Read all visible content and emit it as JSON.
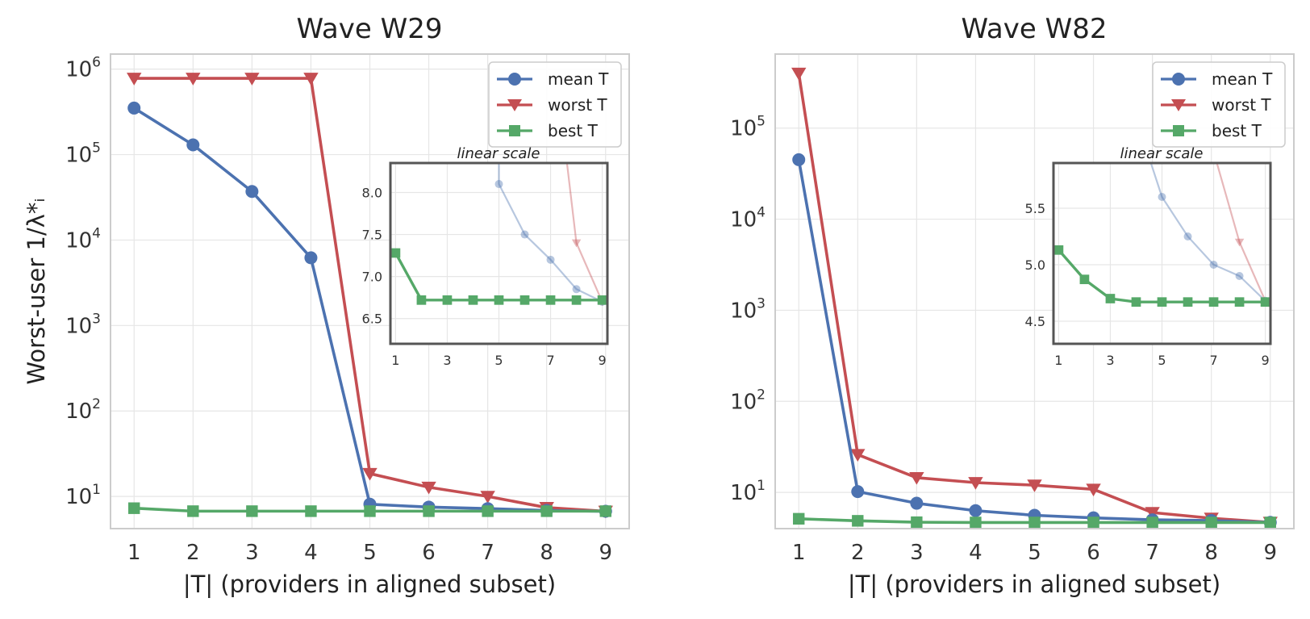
{
  "chart_data": [
    {
      "type": "line",
      "title": "Wave W29",
      "xlabel": "|T| (providers in aligned subset)",
      "ylabel": "Worst-user 1/λ*ᵢ",
      "yscale": "log",
      "ylim": [
        4.2,
        1500000
      ],
      "y_ticks": [
        {
          "value": 10,
          "base": "10",
          "exp": "1"
        },
        {
          "value": 100,
          "base": "10",
          "exp": "2"
        },
        {
          "value": 1000,
          "base": "10",
          "exp": "3"
        },
        {
          "value": 10000,
          "base": "10",
          "exp": "4"
        },
        {
          "value": 100000,
          "base": "10",
          "exp": "5"
        },
        {
          "value": 1000000,
          "base": "10",
          "exp": "6"
        }
      ],
      "x": [
        1,
        2,
        3,
        4,
        5,
        6,
        7,
        8,
        9
      ],
      "xlim": [
        0.6,
        9.4
      ],
      "series": [
        {
          "name": "mean T",
          "color": "#4c72b0",
          "marker": "circle",
          "values": [
            350000,
            130000,
            37000,
            6200,
            8.1,
            7.5,
            7.2,
            6.85,
            6.7
          ]
        },
        {
          "name": "worst T",
          "color": "#c44e52",
          "marker": "triangle",
          "values": [
            780000,
            780000,
            780000,
            780000,
            18.5,
            12.8,
            10.0,
            7.4,
            6.7
          ]
        },
        {
          "name": "best T",
          "color": "#55a868",
          "marker": "square",
          "values": [
            7.28,
            6.72,
            6.72,
            6.72,
            6.72,
            6.72,
            6.72,
            6.72,
            6.72
          ]
        }
      ],
      "legend": {
        "entries": [
          "mean T",
          "worst T",
          "best T"
        ],
        "location": "upper-right"
      },
      "inset": {
        "title": "linear scale",
        "ylim": [
          6.2,
          8.35
        ],
        "y_ticks": [
          "6.5",
          "7.0",
          "7.5",
          "8.0"
        ],
        "x_ticks": [
          "1",
          "3",
          "5",
          "7",
          "9"
        ]
      }
    },
    {
      "type": "line",
      "title": "Wave W82",
      "xlabel": "|T| (providers in aligned subset)",
      "ylabel": "",
      "yscale": "log",
      "ylim": [
        4.0,
        650000
      ],
      "y_ticks": [
        {
          "value": 10,
          "base": "10",
          "exp": "1"
        },
        {
          "value": 100,
          "base": "10",
          "exp": "2"
        },
        {
          "value": 1000,
          "base": "10",
          "exp": "3"
        },
        {
          "value": 10000,
          "base": "10",
          "exp": "4"
        },
        {
          "value": 100000,
          "base": "10",
          "exp": "5"
        }
      ],
      "x": [
        1,
        2,
        3,
        4,
        5,
        6,
        7,
        8,
        9
      ],
      "xlim": [
        0.6,
        9.4
      ],
      "series": [
        {
          "name": "mean T",
          "color": "#4c72b0",
          "marker": "circle",
          "values": [
            45000,
            10.2,
            7.6,
            6.3,
            5.6,
            5.25,
            5.0,
            4.9,
            4.68
          ]
        },
        {
          "name": "worst T",
          "color": "#c44e52",
          "marker": "triangle",
          "values": [
            400000,
            26,
            14.5,
            12.8,
            12.0,
            10.8,
            6.0,
            5.2,
            4.68
          ]
        },
        {
          "name": "best T",
          "color": "#55a868",
          "marker": "square",
          "values": [
            5.13,
            4.87,
            4.7,
            4.67,
            4.67,
            4.67,
            4.67,
            4.67,
            4.67
          ]
        }
      ],
      "legend": {
        "entries": [
          "mean T",
          "worst T",
          "best T"
        ],
        "location": "upper-right"
      },
      "inset": {
        "title": "linear scale",
        "ylim": [
          4.3,
          5.9
        ],
        "y_ticks": [
          "4.5",
          "5.0",
          "5.5"
        ],
        "x_ticks": [
          "1",
          "3",
          "5",
          "7",
          "9"
        ]
      }
    }
  ]
}
